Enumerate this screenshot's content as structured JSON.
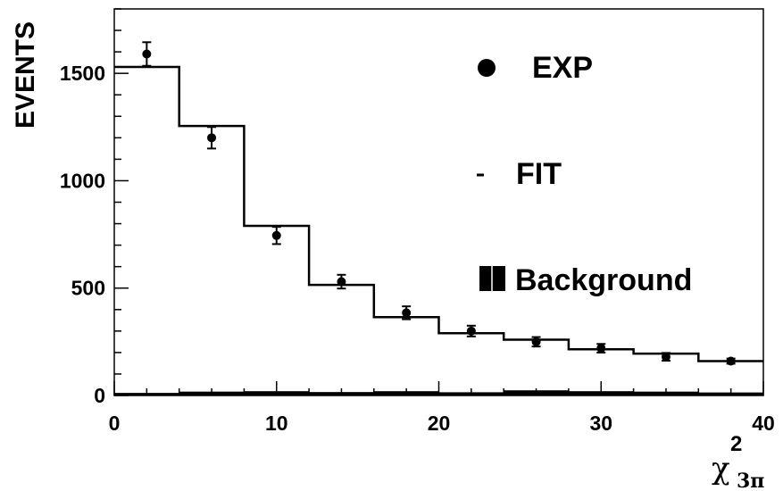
{
  "chart_data": {
    "type": "bar",
    "xlabel": "χ",
    "xlabel_superscript": "2",
    "xlabel_subscript": "3π",
    "ylabel": "EVENTS",
    "xlim": [
      0,
      40
    ],
    "ylim": [
      0,
      1800
    ],
    "xticks": [
      0,
      10,
      20,
      30,
      40
    ],
    "xtick_labels": [
      "0",
      "10",
      "20",
      "30",
      "40"
    ],
    "yticks": [
      0,
      500,
      1000,
      1500
    ],
    "ytick_labels": [
      "0",
      "500",
      "1000",
      "1500"
    ],
    "bin_edges": [
      0,
      4,
      8,
      12,
      16,
      20,
      24,
      28,
      32,
      36,
      40
    ],
    "grid": false,
    "legend_placement": "right",
    "series": [
      {
        "name": "EXP",
        "kind": "points-with-errors",
        "x": [
          2,
          6,
          10,
          14,
          18,
          22,
          26,
          30,
          34,
          38
        ],
        "y": [
          1590,
          1200,
          745,
          530,
          385,
          300,
          250,
          220,
          180,
          160
        ],
        "yerr": [
          55,
          50,
          40,
          32,
          30,
          25,
          22,
          20,
          18,
          12
        ]
      },
      {
        "name": "FIT",
        "kind": "step",
        "values": [
          1530,
          1255,
          790,
          515,
          365,
          290,
          260,
          215,
          195,
          160
        ]
      },
      {
        "name": "Background",
        "kind": "filled-bars",
        "values": [
          12,
          18,
          20,
          16,
          20,
          15,
          24,
          20,
          18,
          14
        ]
      }
    ],
    "legend": {
      "exp_label": "EXP",
      "fit_label": "FIT",
      "background_label": "Background"
    }
  }
}
